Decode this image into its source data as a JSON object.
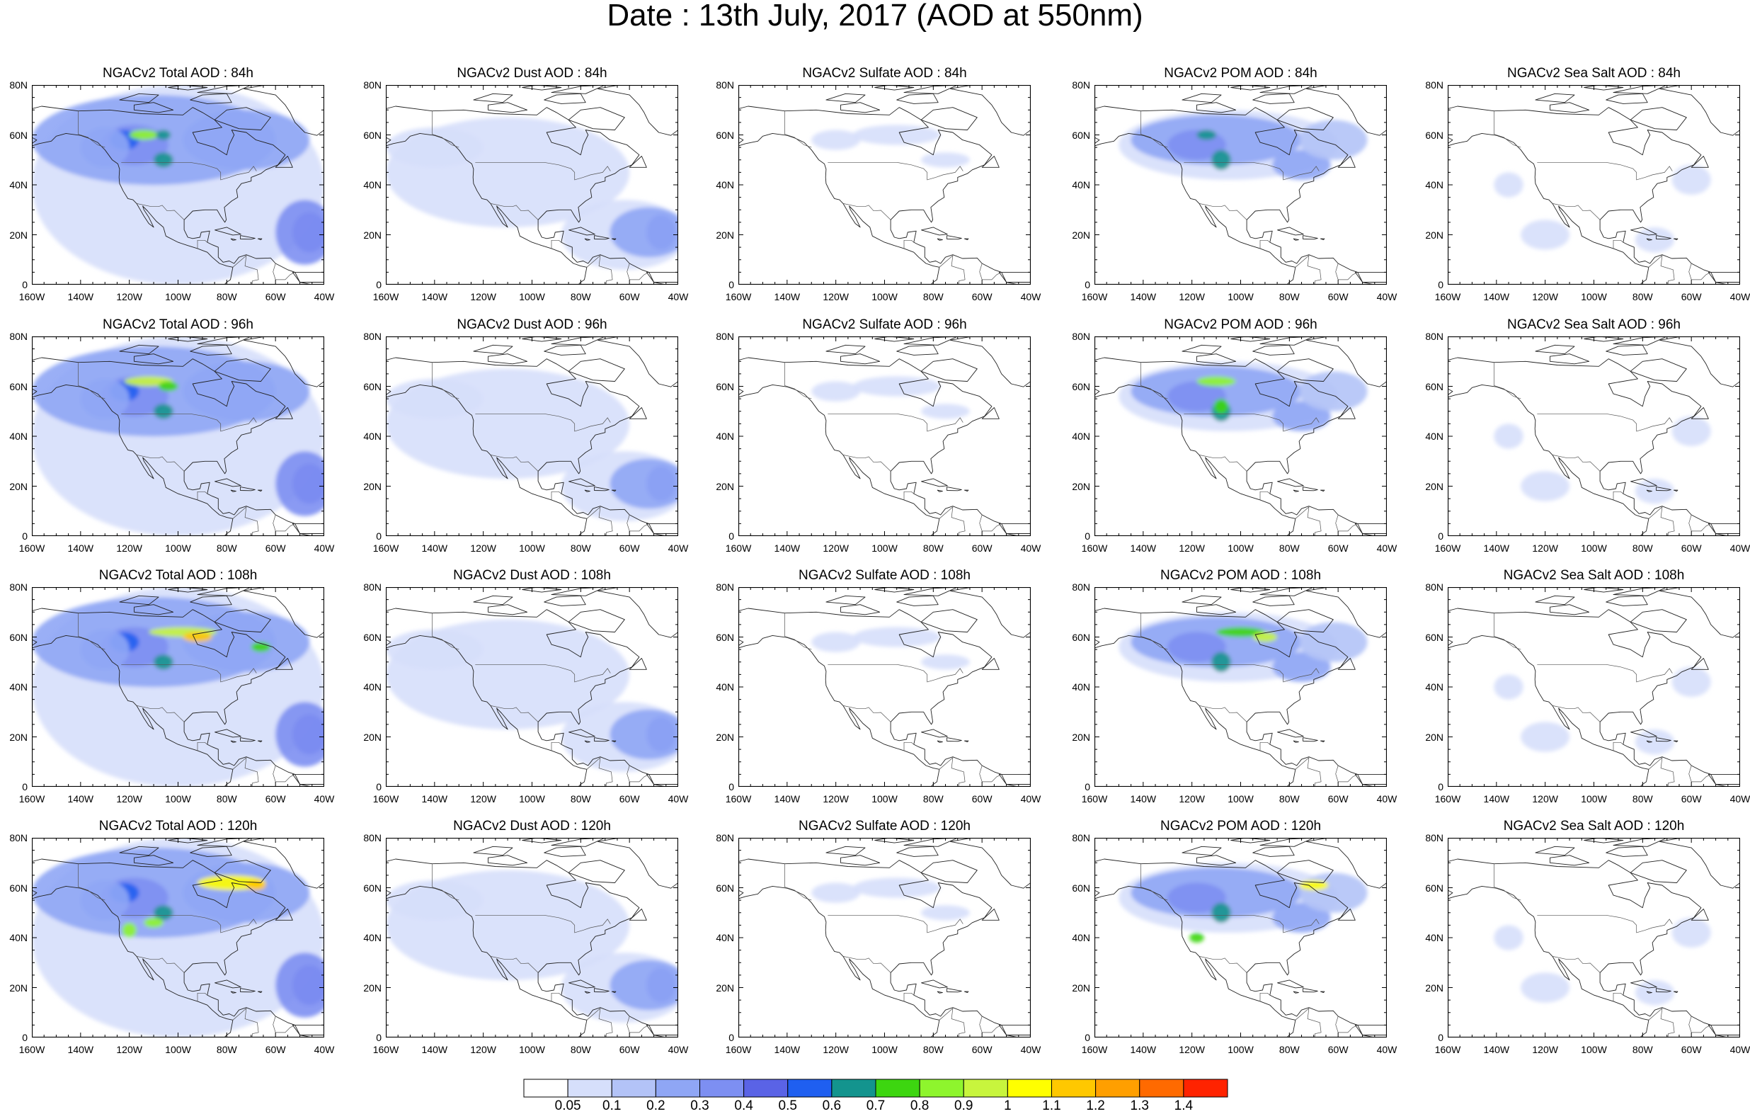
{
  "title": "Date : 13th July, 2017 (AOD at 550nm)",
  "columns": [
    {
      "id": "total",
      "label": "NGACv2 Total AOD"
    },
    {
      "id": "dust",
      "label": "NGACv2 Dust AOD"
    },
    {
      "id": "sulfate",
      "label": "NGACv2 Sulfate AOD"
    },
    {
      "id": "pom",
      "label": "NGACv2 POM AOD"
    },
    {
      "id": "seasalt",
      "label": "NGACv2 Sea Salt AOD"
    }
  ],
  "rows": [
    "84h",
    "96h",
    "108h",
    "120h"
  ],
  "panel_titles": [
    [
      "NGACv2 Total AOD : 84h",
      "NGACv2 Dust AOD : 84h",
      "NGACv2 Sulfate AOD : 84h",
      "NGACv2 POM AOD : 84h",
      "NGACv2 Sea Salt AOD : 84h"
    ],
    [
      "NGACv2 Total AOD : 96h",
      "NGACv2 Dust AOD : 96h",
      "NGACv2 Sulfate AOD : 96h",
      "NGACv2 POM AOD : 96h",
      "NGACv2 Sea Salt AOD : 96h"
    ],
    [
      "NGACv2 Total AOD : 108h",
      "NGACv2 Dust AOD : 108h",
      "NGACv2 Sulfate AOD : 108h",
      "NGACv2 POM AOD : 108h",
      "NGACv2 Sea Salt AOD : 108h"
    ],
    [
      "NGACv2 Total AOD : 120h",
      "NGACv2 Dust AOD : 120h",
      "NGACv2 Sulfate AOD : 120h",
      "NGACv2 POM AOD : 120h",
      "NGACv2 Sea Salt  AOD : 120h"
    ]
  ],
  "map_extent": {
    "lon": [
      -160,
      -40
    ],
    "lat": [
      0,
      80
    ]
  },
  "x_ticks": [
    "160W",
    "140W",
    "120W",
    "100W",
    "80W",
    "60W",
    "40W"
  ],
  "y_ticks": [
    "0",
    "20N",
    "40N",
    "60N",
    "80N"
  ],
  "colorbar": {
    "colors": [
      "#ffffff",
      "#d6dffb",
      "#b3c3f7",
      "#8fa6f5",
      "#7d8ff2",
      "#5a63e6",
      "#1f5ff0",
      "#13948e",
      "#3dd610",
      "#8ef52d",
      "#c8f53d",
      "#ffff00",
      "#ffc800",
      "#ff9f00",
      "#ff6a00",
      "#ff2300"
    ],
    "labels": [
      "0.05",
      "0.1",
      "0.2",
      "0.3",
      "0.4",
      "0.5",
      "0.6",
      "0.7",
      "0.8",
      "0.9",
      "1",
      "1.1",
      "1.2",
      "1.3",
      "1.4"
    ]
  }
}
